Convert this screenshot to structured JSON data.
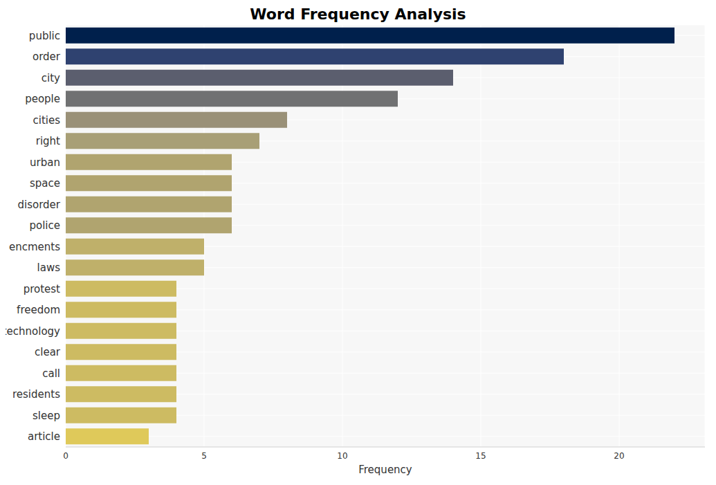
{
  "chart_data": {
    "type": "bar",
    "title": "Word Frequency Analysis",
    "orientation": "horizontal",
    "x_label": "Frequency",
    "categories": [
      "public",
      "order",
      "city",
      "people",
      "cities",
      "right",
      "urban",
      "space",
      "disorder",
      "police",
      "encments",
      "laws",
      "protest",
      "freedom",
      "technology",
      "clear",
      "call",
      "residents",
      "sleep",
      "article"
    ],
    "values": [
      22,
      18,
      14,
      12,
      8,
      7,
      6,
      6,
      6,
      6,
      5,
      5,
      4,
      4,
      4,
      4,
      4,
      4,
      4,
      3
    ],
    "colors": [
      "#00204c",
      "#2f4270",
      "#5b5e6e",
      "#707172",
      "#9a9178",
      "#a89f76",
      "#b0a46f",
      "#b0a46f",
      "#b0a46f",
      "#b0a46f",
      "#bfb06a",
      "#bfb06a",
      "#cdbb62",
      "#cdbb62",
      "#cdbb62",
      "#cdbb62",
      "#cdbb62",
      "#cdbb62",
      "#cdbb62",
      "#dfc95a"
    ],
    "xlim": [
      0,
      23.1
    ],
    "xticks": [
      0,
      5,
      10,
      15,
      20
    ],
    "grid": true
  }
}
